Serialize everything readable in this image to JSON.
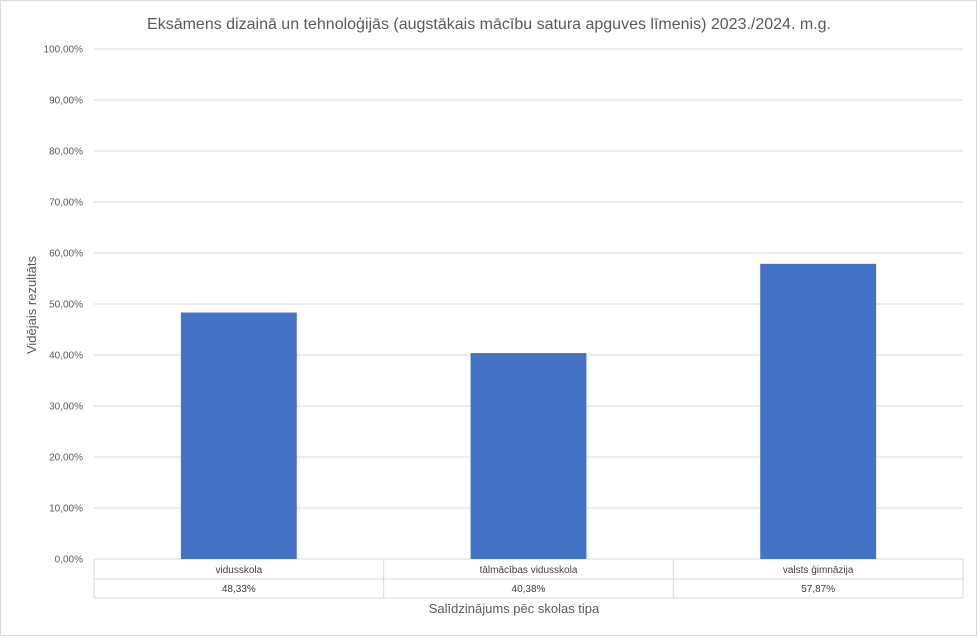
{
  "chart_data": {
    "type": "bar",
    "title": "Eksāmens dizainā un tehnoloģijās (augstākais mācību satura apguves līmenis) 2023./2024. m.g.",
    "xlabel": "Salīdzinājums pēc skolas tipa",
    "ylabel": "Vidējais rezultāts",
    "categories": [
      "vidusskola",
      "tālmācības vidusskola",
      "valsts ģimnāzija"
    ],
    "values": [
      48.33,
      40.38,
      57.87
    ],
    "value_labels": [
      "48,33%",
      "40,38%",
      "57,87%"
    ],
    "ylim": [
      0,
      100
    ],
    "yticks": [
      0,
      10,
      20,
      30,
      40,
      50,
      60,
      70,
      80,
      90,
      100
    ],
    "ytick_labels": [
      "0,00%",
      "10,00%",
      "20,00%",
      "30,00%",
      "40,00%",
      "50,00%",
      "60,00%",
      "70,00%",
      "80,00%",
      "90,00%",
      "100,00%"
    ],
    "grid": true,
    "data_table": true,
    "bar_color": "#4472c4"
  }
}
